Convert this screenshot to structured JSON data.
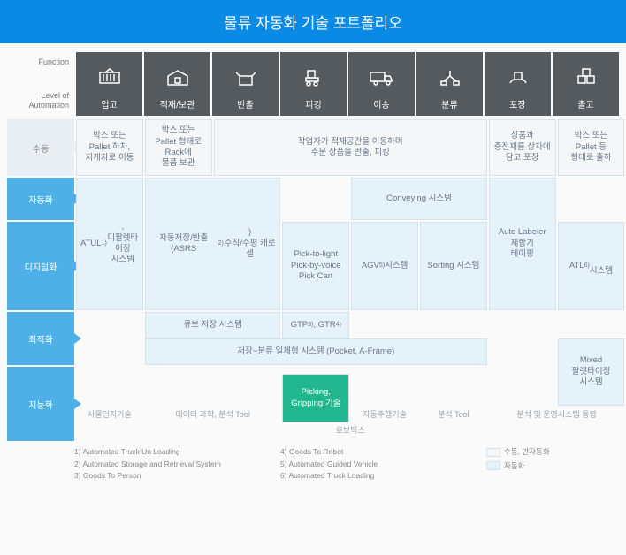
{
  "title": "물류 자동화 기술 포트폴리오",
  "axis": {
    "function": "Function",
    "level": "Level of\nAutomation"
  },
  "functions": [
    {
      "id": "in",
      "label": "입고"
    },
    {
      "id": "store",
      "label": "적재/보관"
    },
    {
      "id": "out",
      "label": "반출"
    },
    {
      "id": "pick",
      "label": "피킹"
    },
    {
      "id": "trans",
      "label": "이송"
    },
    {
      "id": "sort",
      "label": "분류"
    },
    {
      "id": "pack",
      "label": "포장"
    },
    {
      "id": "ship",
      "label": "출고"
    }
  ],
  "levels": [
    {
      "id": "manual",
      "label": "수동"
    },
    {
      "id": "auto",
      "label": "자동화"
    },
    {
      "id": "digital",
      "label": "디지털화"
    },
    {
      "id": "opt",
      "label": "최적화"
    },
    {
      "id": "intel",
      "label": "지능화"
    }
  ],
  "legend": {
    "manual": "수동, 반자동화",
    "auto": "자동화"
  },
  "grid": {
    "colW": 75.8,
    "rows": [
      64,
      48,
      100,
      60,
      84
    ],
    "gap": 2
  },
  "blocks": [
    {
      "id": "m-in",
      "cls": "manual",
      "col": 0,
      "span": 1,
      "row": 0,
      "rspan": 1,
      "text": "박스 또는\nPallet 하차,\n지게차로 이동"
    },
    {
      "id": "m-store",
      "cls": "manual",
      "col": 1,
      "span": 1,
      "row": 0,
      "rspan": 1,
      "text": "박스 또는\nPallet 형태로\nRack에\n물품 보관"
    },
    {
      "id": "m-outpick",
      "cls": "manual",
      "col": 2,
      "span": 4,
      "row": 0,
      "rspan": 1,
      "text": "작업자가 적재공간을 이동하며\n주문 상품을 반출, 피킹"
    },
    {
      "id": "m-pack",
      "cls": "manual",
      "col": 6,
      "span": 1,
      "row": 0,
      "rspan": 1,
      "text": "상품과\n충전재를 상자에\n담고 포장"
    },
    {
      "id": "m-ship",
      "cls": "manual",
      "col": 7,
      "span": 1,
      "row": 0,
      "rspan": 1,
      "text": "박스 또는\nPallet 등\n형태로 출하"
    },
    {
      "id": "atul",
      "cls": "auto",
      "col": 0,
      "span": 1,
      "row": 1,
      "rspan": 2,
      "text": "ATUL<sup>1)</sup>,\n디팔렛타이징\n시스템"
    },
    {
      "id": "asrs",
      "cls": "auto",
      "col": 1,
      "span": 2,
      "row": 1,
      "rspan": 2,
      "text": "자동저장/반출 (ASRS<sup>2)</sup>)\n수직/수평 캐로셀"
    },
    {
      "id": "ptl",
      "cls": "auto",
      "col": 3,
      "span": 1,
      "row": 2,
      "rspan": 1,
      "text": "Pick-to-light\nPick-by-voice\nPick Cart"
    },
    {
      "id": "agv",
      "cls": "auto",
      "col": 4,
      "span": 1,
      "row": 2,
      "rspan": 1,
      "text": "AGV<sup>5)</sup> 시스템"
    },
    {
      "id": "convey",
      "cls": "auto",
      "col": 4,
      "span": 2,
      "row": 1,
      "rspan": 1,
      "text": "Conveying 시스템"
    },
    {
      "id": "sortsys",
      "cls": "auto",
      "col": 5,
      "span": 1,
      "row": 2,
      "rspan": 1,
      "text": "Sorting 시스템"
    },
    {
      "id": "labeler",
      "cls": "auto",
      "col": 6,
      "span": 1,
      "row": 1,
      "rspan": 2,
      "text": "Auto Labeler\n제함기\n테이핑"
    },
    {
      "id": "atl",
      "cls": "auto",
      "col": 7,
      "span": 1,
      "row": 2,
      "rspan": 1,
      "text": "ATL<sup>6)</sup>\n시스템"
    },
    {
      "id": "cube",
      "cls": "auto",
      "col": 1,
      "span": 2,
      "row": 3,
      "rspan": 0.5,
      "text": "큐브 저장 시스템"
    },
    {
      "id": "gtp",
      "cls": "auto",
      "col": 3,
      "span": 1,
      "row": 3,
      "rspan": 0.5,
      "text": "GTP<sup>3)</sup>, GTR<sup>4)</sup>"
    },
    {
      "id": "pocket",
      "cls": "auto",
      "col": 1,
      "span": 5,
      "row": 3.5,
      "rspan": 0.5,
      "text": "저장~분류 일체형 시스템 (Pocket, A-Frame)"
    },
    {
      "id": "mixed",
      "cls": "auto",
      "col": 7,
      "span": 1,
      "row": 3.5,
      "rspan": 1,
      "text": "Mixed\n팔렛타이징\n시스템"
    },
    {
      "id": "cognitive",
      "cls": "textonly",
      "col": 0,
      "span": 1,
      "row": 4.4,
      "rspan": 0.5,
      "text": "사물인지기술"
    },
    {
      "id": "datasci",
      "cls": "textonly",
      "col": 1,
      "span": 2,
      "row": 4.4,
      "rspan": 0.5,
      "text": "데이터 과학, 분석 Tool"
    },
    {
      "id": "picking",
      "cls": "highlight",
      "col": 3,
      "span": 1,
      "row": 4.1,
      "rspan": 0.65,
      "text": "Picking,\nGripping 기술"
    },
    {
      "id": "selfdrive",
      "cls": "textonly",
      "col": 4,
      "span": 1,
      "row": 4.4,
      "rspan": 0.5,
      "text": "자동주행기술"
    },
    {
      "id": "analysis",
      "cls": "textonly",
      "col": 5,
      "span": 1,
      "row": 4.4,
      "rspan": 0.5,
      "text": "분석 Tool"
    },
    {
      "id": "opsys",
      "cls": "textonly",
      "col": 6,
      "span": 2,
      "row": 4.4,
      "rspan": 0.5,
      "text": "분석 및 운영시스템 통합"
    },
    {
      "id": "robotics",
      "cls": "textonly faded",
      "col": 3,
      "span": 2,
      "row": 4.75,
      "rspan": 0.3,
      "text": "로보틱스"
    }
  ],
  "footnotes": {
    "left": [
      "1) Automated Truck Un Loading",
      "2) Automated Storage and Retrieval System",
      "3) Goods To Person"
    ],
    "right": [
      "4) Goods To Robot",
      "5) Automated Guided Vehicle",
      "6) Automated Truck Loading"
    ]
  },
  "colors": {
    "header": "#088ae5",
    "level": "#4fb0e8",
    "manual": "#f4f6f8",
    "auto": "#e6f2fa",
    "highlight": "#22b78f",
    "funcBg": "#555a5f"
  }
}
